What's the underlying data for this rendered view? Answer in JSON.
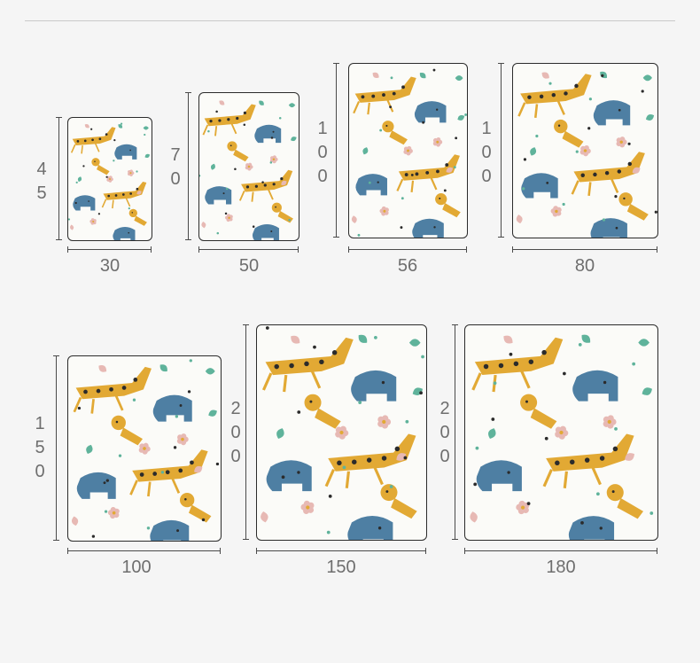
{
  "colors": {
    "background": "#f5f5f5",
    "mustard": "#e2a934",
    "blue": "#4e7fa3",
    "teal": "#5fb39b",
    "pink": "#e7b9b4",
    "dark": "#2b2b2b"
  },
  "pattern": {
    "motifs": [
      "giraffe-shape",
      "elephant-shape",
      "lion-shape",
      "bird-shape",
      "leaf-shape",
      "flower-shape"
    ]
  },
  "sizes": [
    {
      "width": "30",
      "height": "45"
    },
    {
      "width": "50",
      "height": "70"
    },
    {
      "width": "56",
      "height": "100"
    },
    {
      "width": "80",
      "height": "100"
    },
    {
      "width": "100",
      "height": "150"
    },
    {
      "width": "150",
      "height": "200"
    },
    {
      "width": "180",
      "height": "200"
    }
  ]
}
